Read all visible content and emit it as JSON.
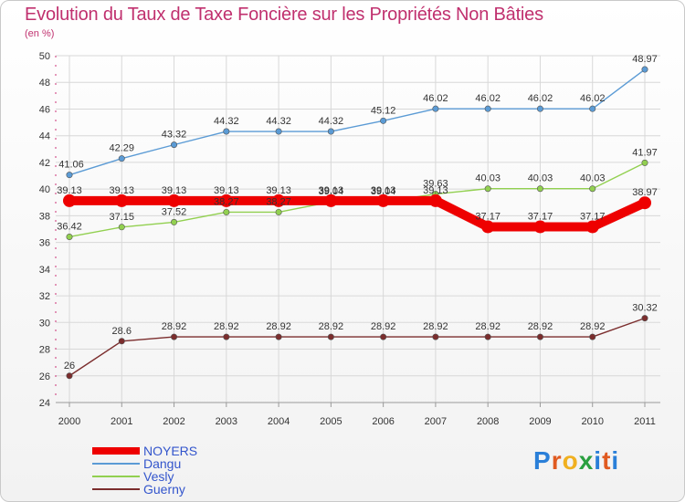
{
  "title": "Evolution du Taux de Taxe Foncière sur les Propriétés Non Bâties",
  "subtitle": "(en %)",
  "logo_text": "Proxiti",
  "chart_data": {
    "type": "line",
    "title": "Evolution du Taux de Taxe Foncière sur les Propriétés Non Bâties",
    "ylabel": "(en %)",
    "xlabel": "",
    "ylim": [
      24,
      50
    ],
    "yticks": [
      "24",
      "26",
      "28",
      "30",
      "32",
      "34",
      "36",
      "38",
      "40",
      "42",
      "44",
      "46",
      "48",
      "50"
    ],
    "categories": [
      "2000",
      "2001",
      "2002",
      "2003",
      "2004",
      "2005",
      "2006",
      "2007",
      "2008",
      "2009",
      "2010",
      "2011"
    ],
    "series": [
      {
        "name": "NOYERS",
        "color": "#ee0000",
        "values": [
          39.13,
          39.13,
          39.13,
          39.13,
          39.13,
          39.13,
          39.13,
          39.13,
          37.17,
          37.17,
          37.17,
          38.97
        ],
        "labels": [
          "39.13",
          "39.13",
          "39.13",
          "39.13",
          "39.13",
          "39.13",
          "39.13",
          "39.13",
          "37.17",
          "37.17",
          "37.17",
          "38.97"
        ]
      },
      {
        "name": "Dangu",
        "color": "#5b9bd5",
        "values": [
          41.06,
          42.29,
          43.32,
          44.32,
          44.32,
          44.32,
          45.12,
          46.02,
          46.02,
          46.02,
          46.02,
          48.97
        ],
        "labels": [
          "41.06",
          "42.29",
          "43.32",
          "44.32",
          "44.32",
          "44.32",
          "45.12",
          "46.02",
          "46.02",
          "46.02",
          "46.02",
          "48.97"
        ]
      },
      {
        "name": "Vesly",
        "color": "#92d050",
        "values": [
          36.42,
          37.15,
          37.52,
          38.27,
          38.27,
          39.04,
          39.04,
          39.63,
          40.03,
          40.03,
          40.03,
          41.97
        ],
        "labels": [
          "36.42",
          "37.15",
          "37.52",
          "38.27",
          "38.27",
          "39.04",
          "39.04",
          "39.63",
          "40.03",
          "40.03",
          "40.03",
          "41.97"
        ]
      },
      {
        "name": "Guerny",
        "color": "#7b2d2d",
        "values": [
          26,
          28.6,
          28.92,
          28.92,
          28.92,
          28.92,
          28.92,
          28.92,
          28.92,
          28.92,
          28.92,
          30.32
        ],
        "labels": [
          "26",
          "28.6",
          "28.92",
          "28.92",
          "28.92",
          "28.92",
          "28.92",
          "28.92",
          "28.92",
          "28.92",
          "28.92",
          "30.32"
        ]
      }
    ]
  }
}
